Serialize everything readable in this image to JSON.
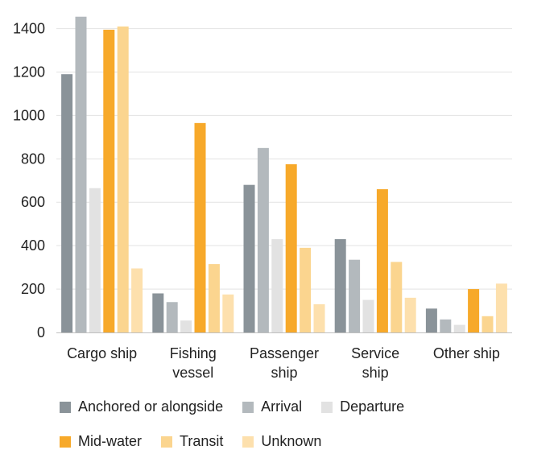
{
  "chart_data": {
    "type": "bar",
    "categories": [
      [
        "Cargo ship"
      ],
      [
        "Fishing",
        "vessel"
      ],
      [
        "Passenger",
        "ship"
      ],
      [
        "Service",
        "ship"
      ],
      [
        "Other ship"
      ]
    ],
    "series": [
      {
        "name": "Anchored or alongside",
        "color": "#8a9399",
        "values": [
          1190,
          180,
          680,
          430,
          110
        ]
      },
      {
        "name": "Arrival",
        "color": "#b3b9bd",
        "values": [
          1455,
          140,
          850,
          335,
          60
        ]
      },
      {
        "name": "Departure",
        "color": "#e2e2e2",
        "values": [
          665,
          55,
          430,
          150,
          35
        ]
      },
      {
        "name": "Mid-water",
        "color": "#f7a92a",
        "values": [
          1395,
          965,
          775,
          660,
          200
        ]
      },
      {
        "name": "Transit",
        "color": "#fbd58f",
        "values": [
          1410,
          315,
          390,
          325,
          75
        ]
      },
      {
        "name": "Unknown",
        "color": "#fde0ad",
        "values": [
          295,
          175,
          130,
          160,
          225
        ]
      }
    ],
    "yticks": [
      0,
      200,
      400,
      600,
      800,
      1000,
      1200,
      1400
    ],
    "ylim": [
      0,
      1480
    ],
    "grid": true,
    "legend_position": "bottom"
  }
}
